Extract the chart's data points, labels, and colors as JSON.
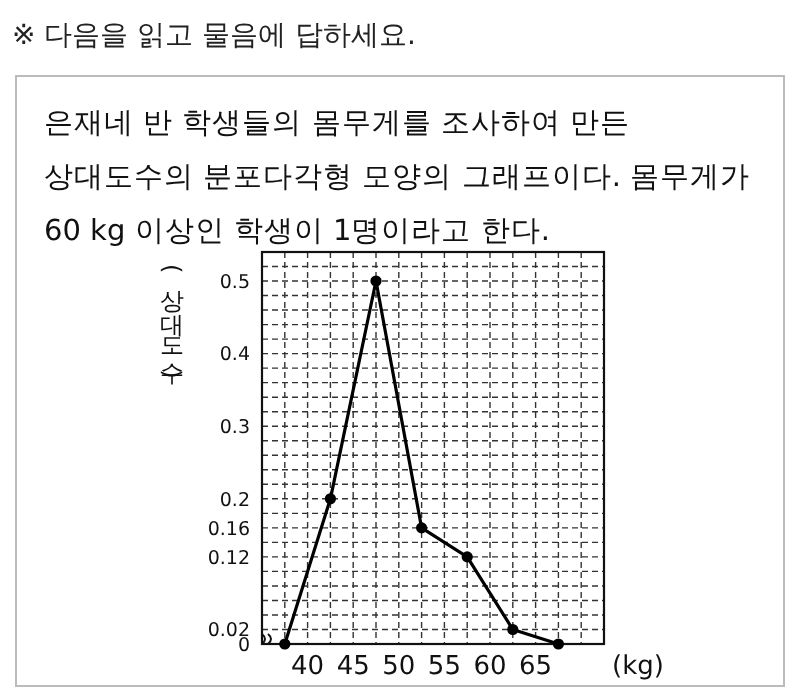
{
  "chart_data": {
    "type": "line",
    "title": "※ 다음을 읽고 물음에 답하세요.",
    "subtitle": "은재네 반 학생들의 몸무게를 조사하여 만든 상대도수의 분포다각형 모양의 그래프이다. 몸무게가 60 kg 이상인 학생이 1명이라고 한다.",
    "xlabel": "(kg)",
    "ylabel": "(상대도수)",
    "x": [
      37.5,
      42.5,
      47.5,
      52.5,
      57.5,
      62.5,
      67.5
    ],
    "series": [
      {
        "color": "#000000",
        "values": [
          0,
          0.2,
          0.5,
          0.16,
          0.12,
          0.02,
          0
        ]
      }
    ],
    "xlim": [
      35,
      72.5
    ],
    "xticks": [
      {
        "value": 37.5,
        "label": null
      },
      40,
      {
        "value": 42.5,
        "label": null
      },
      45,
      {
        "value": 47.5,
        "label": null
      },
      50,
      {
        "value": 52.5,
        "label": null
      },
      55,
      {
        "value": 57.5,
        "label": null
      },
      60,
      {
        "value": 62.5,
        "label": null
      },
      65,
      {
        "value": 67.5,
        "label": null
      },
      {
        "value": 70,
        "label": null
      }
    ],
    "ylim": [
      0,
      0.54
    ],
    "yticks": [
      0,
      0.02,
      {
        "value": 0.04,
        "label": null
      },
      {
        "value": 0.06,
        "label": null
      },
      {
        "value": 0.08,
        "label": null
      },
      {
        "value": 0.1,
        "label": null
      },
      0.12,
      {
        "value": 0.14,
        "label": null
      },
      0.16,
      {
        "value": 0.18,
        "label": null
      },
      0.2,
      {
        "value": 0.22,
        "label": null
      },
      {
        "value": 0.24,
        "label": null
      },
      {
        "value": 0.26,
        "label": null
      },
      {
        "value": 0.28,
        "label": null
      },
      0.3,
      {
        "value": 0.32,
        "label": null
      },
      {
        "value": 0.34,
        "label": null
      },
      {
        "value": 0.36,
        "label": null
      },
      {
        "value": 0.38,
        "label": null
      },
      0.4,
      {
        "value": 0.42,
        "label": null
      },
      {
        "value": 0.44,
        "label": null
      },
      {
        "value": 0.46,
        "label": null
      },
      {
        "value": 0.48,
        "label": null
      },
      0.5,
      {
        "value": 0.52,
        "label": null
      }
    ],
    "grid": true,
    "marker": "circle",
    "line_style": "solid"
  }
}
